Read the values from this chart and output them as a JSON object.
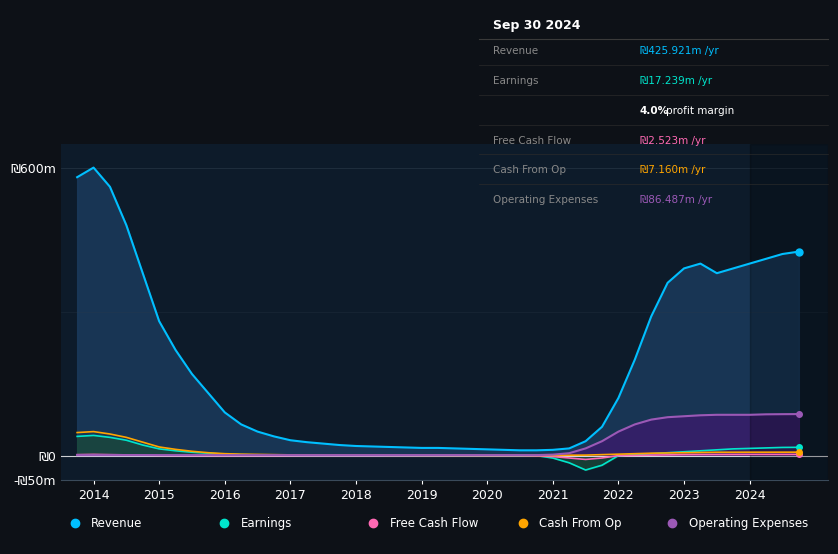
{
  "bg_color": "#0d1117",
  "plot_bg_color": "#0d1b2a",
  "grid_color": "#2a3a4a",
  "years": [
    2013.75,
    2014.0,
    2014.25,
    2014.5,
    2014.75,
    2015.0,
    2015.25,
    2015.5,
    2015.75,
    2016.0,
    2016.25,
    2016.5,
    2016.75,
    2017.0,
    2017.25,
    2017.5,
    2017.75,
    2018.0,
    2018.25,
    2018.5,
    2018.75,
    2019.0,
    2019.25,
    2019.5,
    2019.75,
    2020.0,
    2020.25,
    2020.5,
    2020.75,
    2021.0,
    2021.25,
    2021.5,
    2021.75,
    2022.0,
    2022.25,
    2022.5,
    2022.75,
    2023.0,
    2023.25,
    2023.5,
    2023.75,
    2024.0,
    2024.25,
    2024.5,
    2024.75
  ],
  "revenue": [
    580,
    600,
    560,
    480,
    380,
    280,
    220,
    170,
    130,
    90,
    65,
    50,
    40,
    32,
    28,
    25,
    22,
    20,
    19,
    18,
    17,
    16,
    16,
    15,
    14,
    13,
    12,
    11,
    11,
    12,
    15,
    30,
    60,
    120,
    200,
    290,
    360,
    390,
    400,
    380,
    390,
    400,
    410,
    420,
    425
  ],
  "earnings": [
    40,
    42,
    38,
    32,
    22,
    14,
    10,
    7,
    5,
    3,
    2,
    1.5,
    1,
    0.8,
    0.6,
    0.5,
    0.5,
    0.5,
    0.5,
    0.4,
    0.4,
    0.3,
    0.3,
    0.3,
    0.2,
    0.2,
    0.2,
    0.1,
    0.1,
    -5,
    -15,
    -30,
    -20,
    0,
    2,
    4,
    6,
    8,
    10,
    12,
    14,
    15,
    16,
    17,
    17.239
  ],
  "free_cash_flow": [
    2,
    2.5,
    2,
    1.5,
    1,
    0.5,
    0.3,
    0.2,
    0.2,
    0.1,
    0.1,
    0.1,
    0.1,
    0.1,
    0.1,
    0.1,
    0.1,
    0.1,
    0.1,
    0.1,
    0.1,
    0.1,
    0.1,
    0.1,
    0.1,
    0.1,
    0.1,
    0.1,
    -0.5,
    -2,
    -5,
    -8,
    -5,
    0,
    0.5,
    1,
    1.5,
    2,
    2.2,
    2.3,
    2.4,
    2.5,
    2.5,
    2.5,
    2.523
  ],
  "cash_from_op": [
    48,
    50,
    45,
    38,
    28,
    18,
    13,
    9,
    6,
    4,
    3,
    2.5,
    2,
    1.5,
    1.2,
    1,
    1,
    1,
    1,
    0.8,
    0.8,
    0.7,
    0.7,
    0.6,
    0.6,
    0.5,
    0.5,
    0.5,
    0.5,
    0.5,
    0.8,
    1,
    2,
    3,
    4,
    5,
    5.5,
    6,
    6.5,
    7,
    7,
    7.1,
    7.1,
    7.15,
    7.16
  ],
  "operating_expenses": [
    1,
    1,
    1,
    1,
    1,
    1,
    1,
    1,
    1,
    1,
    1,
    1,
    1,
    1,
    1,
    1,
    1,
    1,
    1,
    1,
    1,
    1,
    1,
    1,
    1,
    1,
    1,
    1,
    1,
    2,
    5,
    15,
    30,
    50,
    65,
    75,
    80,
    82,
    84,
    85,
    85,
    85,
    86,
    86.3,
    86.487
  ],
  "revenue_color": "#00bfff",
  "earnings_color": "#00e5cc",
  "free_cash_flow_color": "#ff69b4",
  "cash_from_op_color": "#ffa500",
  "operating_expenses_color": "#9b59b6",
  "revenue_fill_color": "#1a3a5c",
  "earnings_fill_color": "#1a4a3a",
  "operating_expenses_fill_color": "#3d1a6e",
  "ylim_min": -50,
  "ylim_max": 650,
  "xlim_min": 2013.5,
  "xlim_max": 2025.2,
  "yticks": [
    -50,
    0,
    600
  ],
  "ytick_labels": [
    "-₪50m",
    "₪0",
    "₪600m"
  ],
  "xtick_years": [
    2014,
    2015,
    2016,
    2017,
    2018,
    2019,
    2020,
    2021,
    2022,
    2023,
    2024
  ],
  "info_box": {
    "title": "Sep 30 2024",
    "rows": [
      {
        "label": "Revenue",
        "value": "₪425.921m /yr",
        "value_color": "#00bfff",
        "bold_part": ""
      },
      {
        "label": "Earnings",
        "value": "₪17.239m /yr",
        "value_color": "#00e5cc",
        "bold_part": ""
      },
      {
        "label": "",
        "value": "4.0% profit margin",
        "value_color": "#ffffff",
        "bold_part": "4.0%"
      },
      {
        "label": "Free Cash Flow",
        "value": "₪2.523m /yr",
        "value_color": "#ff69b4",
        "bold_part": ""
      },
      {
        "label": "Cash From Op",
        "value": "₪7.160m /yr",
        "value_color": "#ffa500",
        "bold_part": ""
      },
      {
        "label": "Operating Expenses",
        "value": "₪86.487m /yr",
        "value_color": "#9b59b6",
        "bold_part": ""
      }
    ]
  },
  "legend_items": [
    {
      "label": "Revenue",
      "color": "#00bfff"
    },
    {
      "label": "Earnings",
      "color": "#00e5cc"
    },
    {
      "label": "Free Cash Flow",
      "color": "#ff69b4"
    },
    {
      "label": "Cash From Op",
      "color": "#ffa500"
    },
    {
      "label": "Operating Expenses",
      "color": "#9b59b6"
    }
  ]
}
